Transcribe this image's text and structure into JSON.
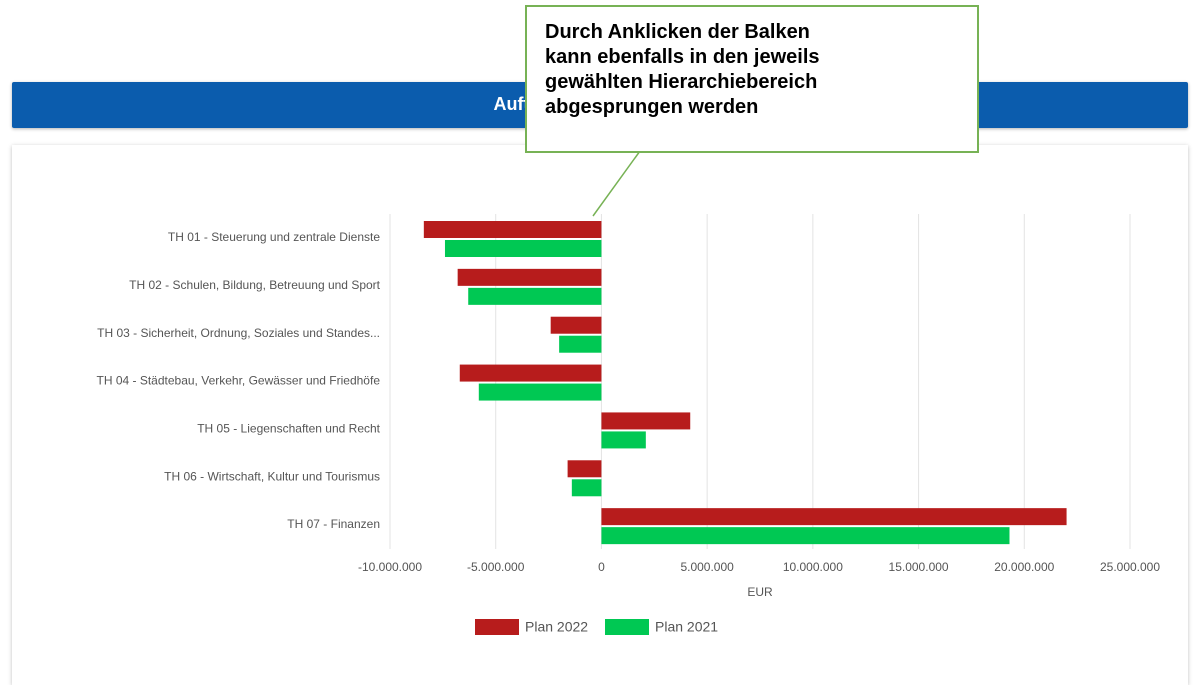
{
  "header": {
    "title": "Aufteilung des Gesamter"
  },
  "callout": {
    "lines": [
      "Durch Anklicken der Balken",
      "kann ebenfalls in den jeweils",
      "gewählten Hierarchiebereich",
      "abgesprungen werden"
    ]
  },
  "chart_data": {
    "type": "bar",
    "orientation": "horizontal",
    "categories": [
      "TH 01 - Steuerung und zentrale Dienste",
      "TH 02 - Schulen, Bildung, Betreuung und Sport",
      "TH 03 - Sicherheit, Ordnung, Soziales und Standes...",
      "TH 04 - Städtebau, Verkehr, Gewässer und Friedhöfe",
      "TH 05 - Liegenschaften und Recht",
      "TH 06 - Wirtschaft, Kultur und Tourismus",
      "TH 07 - Finanzen"
    ],
    "series": [
      {
        "name": "Plan 2022",
        "color": "#b71c1c",
        "values": [
          -8400000,
          -6800000,
          -2400000,
          -6700000,
          4200000,
          -1600000,
          22000000
        ]
      },
      {
        "name": "Plan 2021",
        "color": "#00c853",
        "values": [
          -7400000,
          -6300000,
          -2000000,
          -5800000,
          2100000,
          -1400000,
          19300000
        ]
      }
    ],
    "xlabel": "EUR",
    "xlim": [
      -10000000,
      25000000
    ],
    "xticks": [
      {
        "value": -10000000,
        "label": "-10.000.000"
      },
      {
        "value": -5000000,
        "label": "-5.000.000"
      },
      0,
      {
        "value": 5000000,
        "label": "5.000.000"
      },
      {
        "value": 10000000,
        "label": "10.000.000"
      },
      {
        "value": 15000000,
        "label": "15.000.000"
      },
      {
        "value": 20000000,
        "label": "20.000.000"
      },
      {
        "value": 25000000,
        "label": "25.000.000"
      }
    ],
    "grid": true,
    "legend": "bottom"
  }
}
